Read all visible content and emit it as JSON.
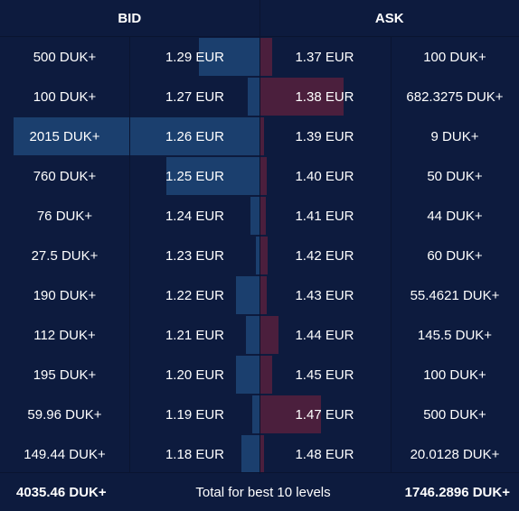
{
  "header": {
    "bid_label": "BID",
    "ask_label": "ASK"
  },
  "bids": [
    {
      "amount": "500 DUK+",
      "price": "1.29 EUR",
      "depth": 500
    },
    {
      "amount": "100 DUK+",
      "price": "1.27 EUR",
      "depth": 100
    },
    {
      "amount": "2015 DUK+",
      "price": "1.26 EUR",
      "depth": 2015
    },
    {
      "amount": "760 DUK+",
      "price": "1.25 EUR",
      "depth": 760
    },
    {
      "amount": "76 DUK+",
      "price": "1.24 EUR",
      "depth": 76
    },
    {
      "amount": "27.5 DUK+",
      "price": "1.23 EUR",
      "depth": 27.5
    },
    {
      "amount": "190 DUK+",
      "price": "1.22 EUR",
      "depth": 190
    },
    {
      "amount": "112 DUK+",
      "price": "1.21 EUR",
      "depth": 112
    },
    {
      "amount": "195 DUK+",
      "price": "1.20 EUR",
      "depth": 195
    },
    {
      "amount": "59.96 DUK+",
      "price": "1.19 EUR",
      "depth": 59.96
    },
    {
      "amount": "149.44 DUK+",
      "price": "1.18 EUR",
      "depth": 149.44
    }
  ],
  "asks": [
    {
      "price": "1.37 EUR",
      "amount": "100 DUK+",
      "depth": 100
    },
    {
      "price": "1.38 EUR",
      "amount": "682.3275 DUK+",
      "depth": 682.3275
    },
    {
      "price": "1.39 EUR",
      "amount": "9 DUK+",
      "depth": 9
    },
    {
      "price": "1.40 EUR",
      "amount": "50 DUK+",
      "depth": 50
    },
    {
      "price": "1.41 EUR",
      "amount": "44 DUK+",
      "depth": 44
    },
    {
      "price": "1.42 EUR",
      "amount": "60 DUK+",
      "depth": 60
    },
    {
      "price": "1.43 EUR",
      "amount": "55.4621 DUK+",
      "depth": 55.4621
    },
    {
      "price": "1.44 EUR",
      "amount": "145.5 DUK+",
      "depth": 145.5
    },
    {
      "price": "1.45 EUR",
      "amount": "100 DUK+",
      "depth": 100
    },
    {
      "price": "1.47 EUR",
      "amount": "500 DUK+",
      "depth": 500
    },
    {
      "price": "1.48 EUR",
      "amount": "20.0128 DUK+",
      "depth": 20.0128
    }
  ],
  "footer": {
    "bid_total": "4035.46 DUK+",
    "label": "Total for best 10 levels",
    "ask_total": "1746.2896 DUK+"
  },
  "colors": {
    "background": "#0d1b3e",
    "bid_bar": "#1b3f6e",
    "ask_bar": "#4b1f3d"
  }
}
